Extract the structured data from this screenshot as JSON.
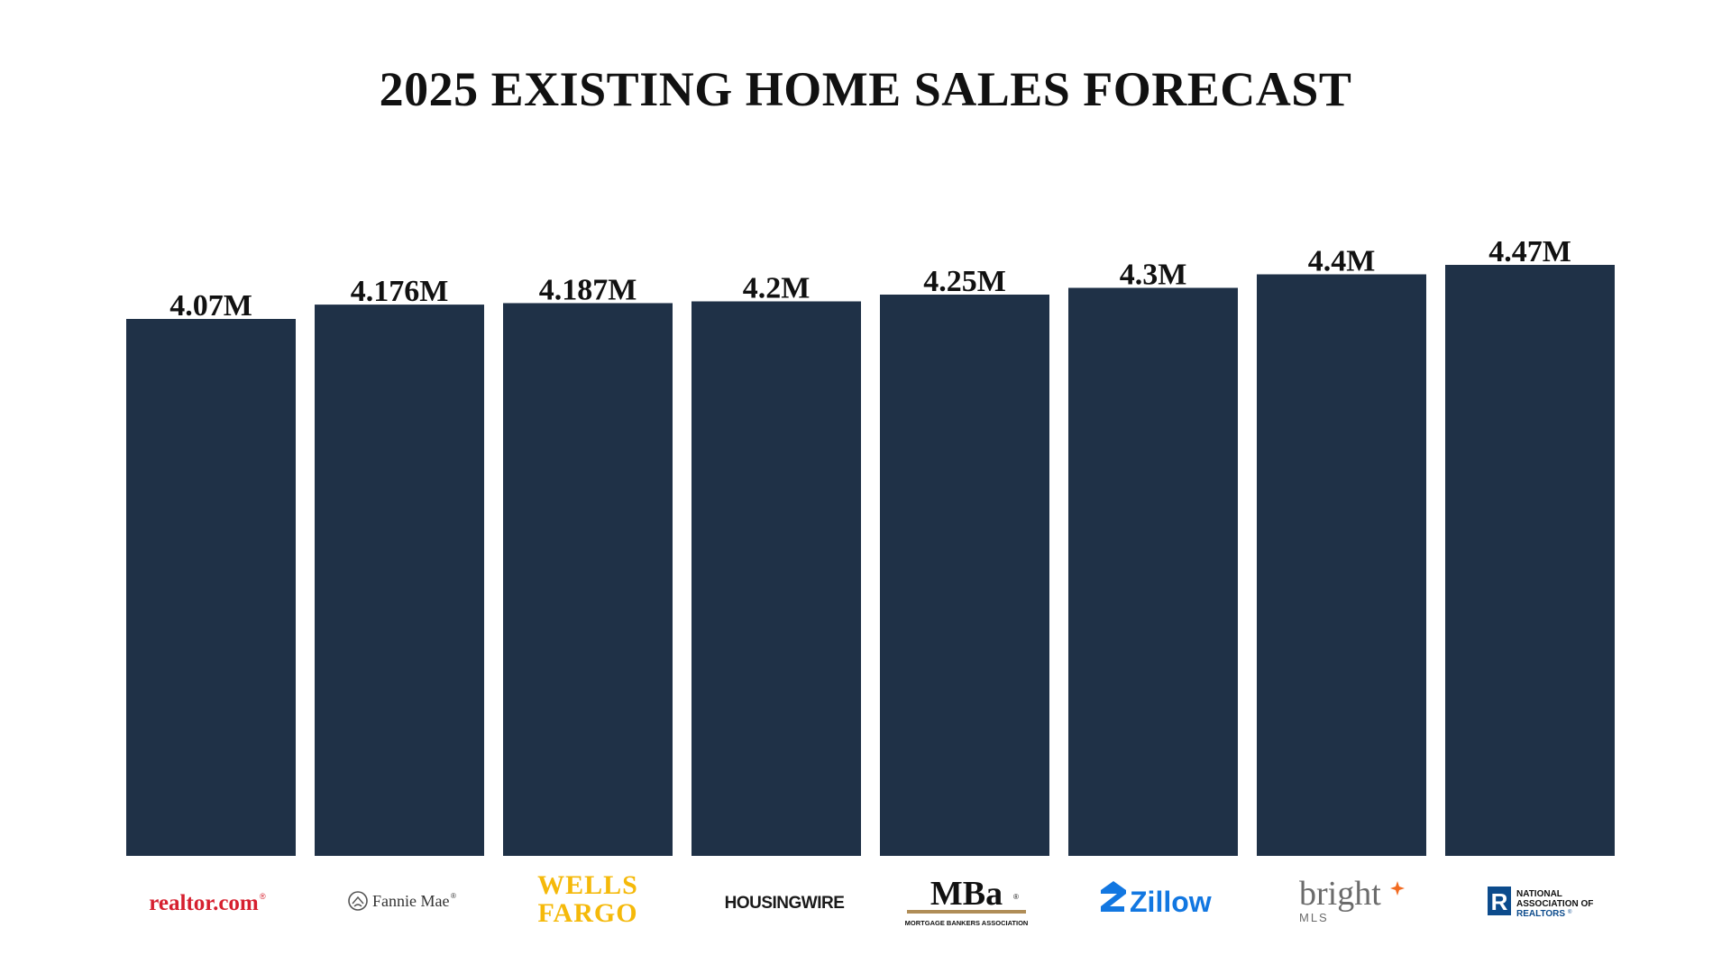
{
  "chart_data": {
    "type": "bar",
    "title": "2025 EXISTING HOME SALES FORECAST",
    "xlabel": "",
    "ylabel": "",
    "unit": "M",
    "grid": false,
    "legend": "none",
    "ylim": [
      0,
      4.47
    ],
    "categories": [
      "realtor.com",
      "Fannie Mae",
      "WELLS FARGO",
      "HOUSINGWIRE",
      "MBA",
      "Zillow",
      "bright MLS",
      "NATIONAL ASSOCIATION OF REALTORS"
    ],
    "values": [
      4.07,
      4.176,
      4.187,
      4.2,
      4.25,
      4.3,
      4.4,
      4.47
    ],
    "value_labels": [
      "4.07M",
      "4.176M",
      "4.187M",
      "4.2M",
      "4.25M",
      "4.3M",
      "4.4M",
      "4.47M"
    ],
    "bar_color": "#1f3147"
  },
  "logos": {
    "realtor": {
      "text": "realtor.com",
      "mark": "®",
      "color": "#d6202f"
    },
    "fannie": {
      "text": "Fannie Mae",
      "mark": "®",
      "color": "#333333"
    },
    "wells": {
      "line1": "WELLS",
      "line2": "FARGO",
      "color": "#f5b90a"
    },
    "housingwire": {
      "text": "HOUSINGWIRE",
      "color": "#1a1a1a"
    },
    "mba": {
      "text": "MBa",
      "mark": "®",
      "subtitle": "MORTGAGE BANKERS ASSOCIATION",
      "color": "#111111",
      "accent": "#b08d57"
    },
    "zillow": {
      "text": "Zillow",
      "color": "#1277e1"
    },
    "bright": {
      "text": "bright",
      "sub": "MLS",
      "color": "#6b6b6b",
      "accent": "#f26b21"
    },
    "nar": {
      "line1": "NATIONAL",
      "line2": "ASSOCIATION OF",
      "line3": "REALTORS",
      "mark": "®",
      "color": "#0c4b8c"
    }
  }
}
